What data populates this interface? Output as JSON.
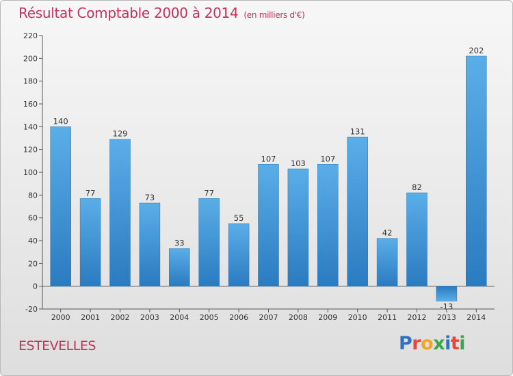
{
  "header": {
    "title": "Résultat Comptable 2000 à 2014",
    "unit": "(en milliers d'€)"
  },
  "footer": {
    "commune": "ESTEVELLES",
    "logo": "Proxiti"
  },
  "colors": {
    "title": "#c0335a",
    "bar_light": "#5aaee8",
    "bar_dark": "#2a7bc0"
  },
  "chart_data": {
    "type": "bar",
    "title": "Résultat Comptable 2000 à 2014",
    "subtitle": "(en milliers d'€)",
    "categories": [
      "2000",
      "2001",
      "2002",
      "2003",
      "2004",
      "2005",
      "2006",
      "2007",
      "2008",
      "2009",
      "2010",
      "2011",
      "2012",
      "2013",
      "2014"
    ],
    "values": [
      140,
      77,
      129,
      73,
      33,
      77,
      55,
      107,
      103,
      107,
      131,
      42,
      82,
      -13,
      202
    ],
    "ylim": [
      -20,
      220
    ],
    "yticks": [
      -20,
      0,
      20,
      40,
      60,
      80,
      100,
      120,
      140,
      160,
      180,
      200,
      220
    ],
    "grid": false,
    "legend": "none"
  }
}
